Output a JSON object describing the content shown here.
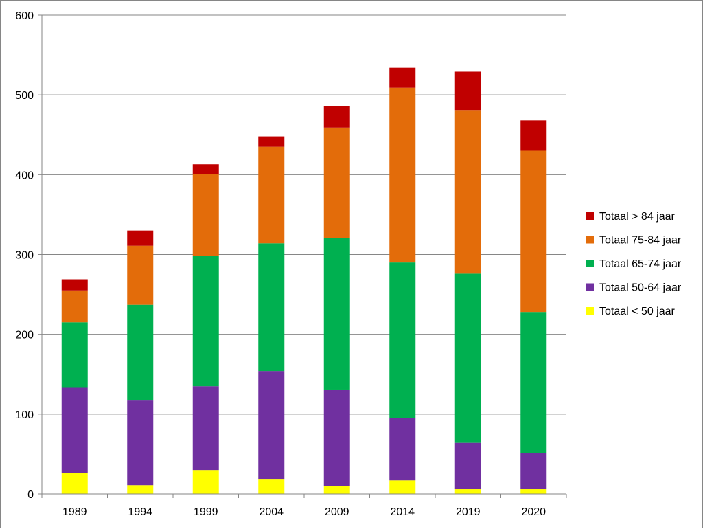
{
  "chart_data": {
    "type": "bar",
    "stacked": true,
    "categories": [
      "1989",
      "1994",
      "1999",
      "2004",
      "2009",
      "2014",
      "2019",
      "2020"
    ],
    "series": [
      {
        "name": "Totaal < 50 jaar",
        "color": "#FFFF00",
        "values": [
          26,
          11,
          30,
          18,
          10,
          17,
          6,
          6
        ]
      },
      {
        "name": "Totaal 50-64 jaar",
        "color": "#7030A0",
        "values": [
          107,
          106,
          105,
          136,
          120,
          78,
          58,
          45
        ]
      },
      {
        "name": "Totaal 65-74 jaar",
        "color": "#00B050",
        "values": [
          82,
          120,
          163,
          160,
          191,
          195,
          212,
          177
        ]
      },
      {
        "name": "Totaal 75-84 jaar",
        "color": "#E36C0A",
        "values": [
          40,
          74,
          103,
          121,
          138,
          219,
          205,
          202
        ]
      },
      {
        "name": "Totaal > 84 jaar",
        "color": "#C00000",
        "values": [
          14,
          19,
          12,
          13,
          27,
          25,
          48,
          38
        ]
      }
    ],
    "ylim": [
      0,
      600
    ],
    "yticks": [
      "0",
      "100",
      "200",
      "300",
      "400",
      "500",
      "600"
    ],
    "grid": true,
    "legend_position": "right"
  }
}
